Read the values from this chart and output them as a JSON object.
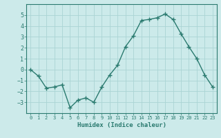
{
  "x": [
    0,
    1,
    2,
    3,
    4,
    5,
    6,
    7,
    8,
    9,
    10,
    11,
    12,
    13,
    14,
    15,
    16,
    17,
    18,
    19,
    20,
    21,
    22,
    23
  ],
  "y": [
    0.0,
    -0.6,
    -1.7,
    -1.6,
    -1.4,
    -3.5,
    -2.8,
    -2.6,
    -3.0,
    -1.6,
    -0.5,
    0.4,
    2.1,
    3.1,
    4.5,
    4.6,
    4.75,
    5.1,
    4.6,
    3.3,
    2.1,
    1.0,
    -0.5,
    -1.6
  ],
  "xlabel": "Humidex (Indice chaleur)",
  "xlim": [
    -0.5,
    23.5
  ],
  "ylim": [
    -4,
    6
  ],
  "yticks": [
    -3,
    -2,
    -1,
    0,
    1,
    2,
    3,
    4,
    5
  ],
  "xticks": [
    0,
    1,
    2,
    3,
    4,
    5,
    6,
    7,
    8,
    9,
    10,
    11,
    12,
    13,
    14,
    15,
    16,
    17,
    18,
    19,
    20,
    21,
    22,
    23
  ],
  "line_color": "#2a7a6f",
  "marker": "+",
  "bg_color": "#cceaea",
  "grid_color": "#aad4d4",
  "tick_color": "#2a7a6f",
  "label_color": "#2a7a6f",
  "linewidth": 1.0,
  "markersize": 4,
  "markeredgewidth": 1.0
}
